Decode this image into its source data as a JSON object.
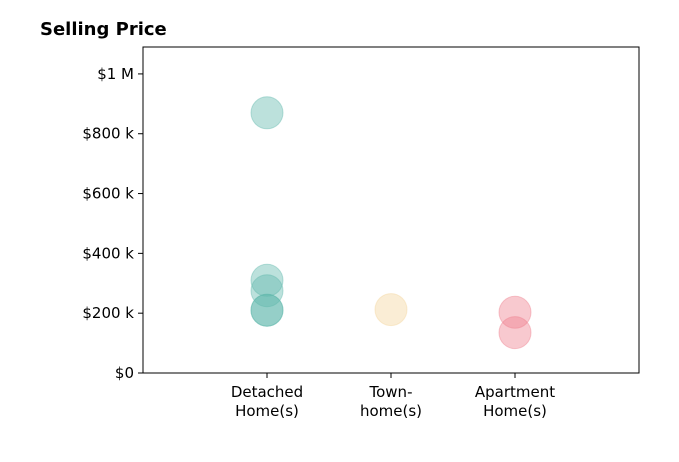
{
  "chart_data": {
    "type": "strip",
    "title": "Selling Price",
    "categories": [
      [
        "Detached",
        "Home(s)"
      ],
      [
        "Town-",
        "home(s)"
      ],
      [
        "Apartment",
        "Home(s)"
      ]
    ],
    "values": [
      [
        870000,
        310000,
        275000,
        210000,
        210000
      ],
      [
        212000
      ],
      [
        203000,
        135000
      ]
    ],
    "colors": [
      "#5fb8ac",
      "#f2d49b",
      "#ee7f8c"
    ],
    "opacity": 0.42,
    "ylim": [
      0,
      1090000
    ],
    "yticks": [
      {
        "value": 0,
        "label": "$0"
      },
      {
        "value": 200000,
        "label": "$200 k"
      },
      {
        "value": 400000,
        "label": "$400 k"
      },
      {
        "value": 600000,
        "label": "$600 k"
      },
      {
        "value": 800000,
        "label": "$800 k"
      },
      {
        "value": 1000000,
        "label": "$1 M"
      }
    ]
  }
}
